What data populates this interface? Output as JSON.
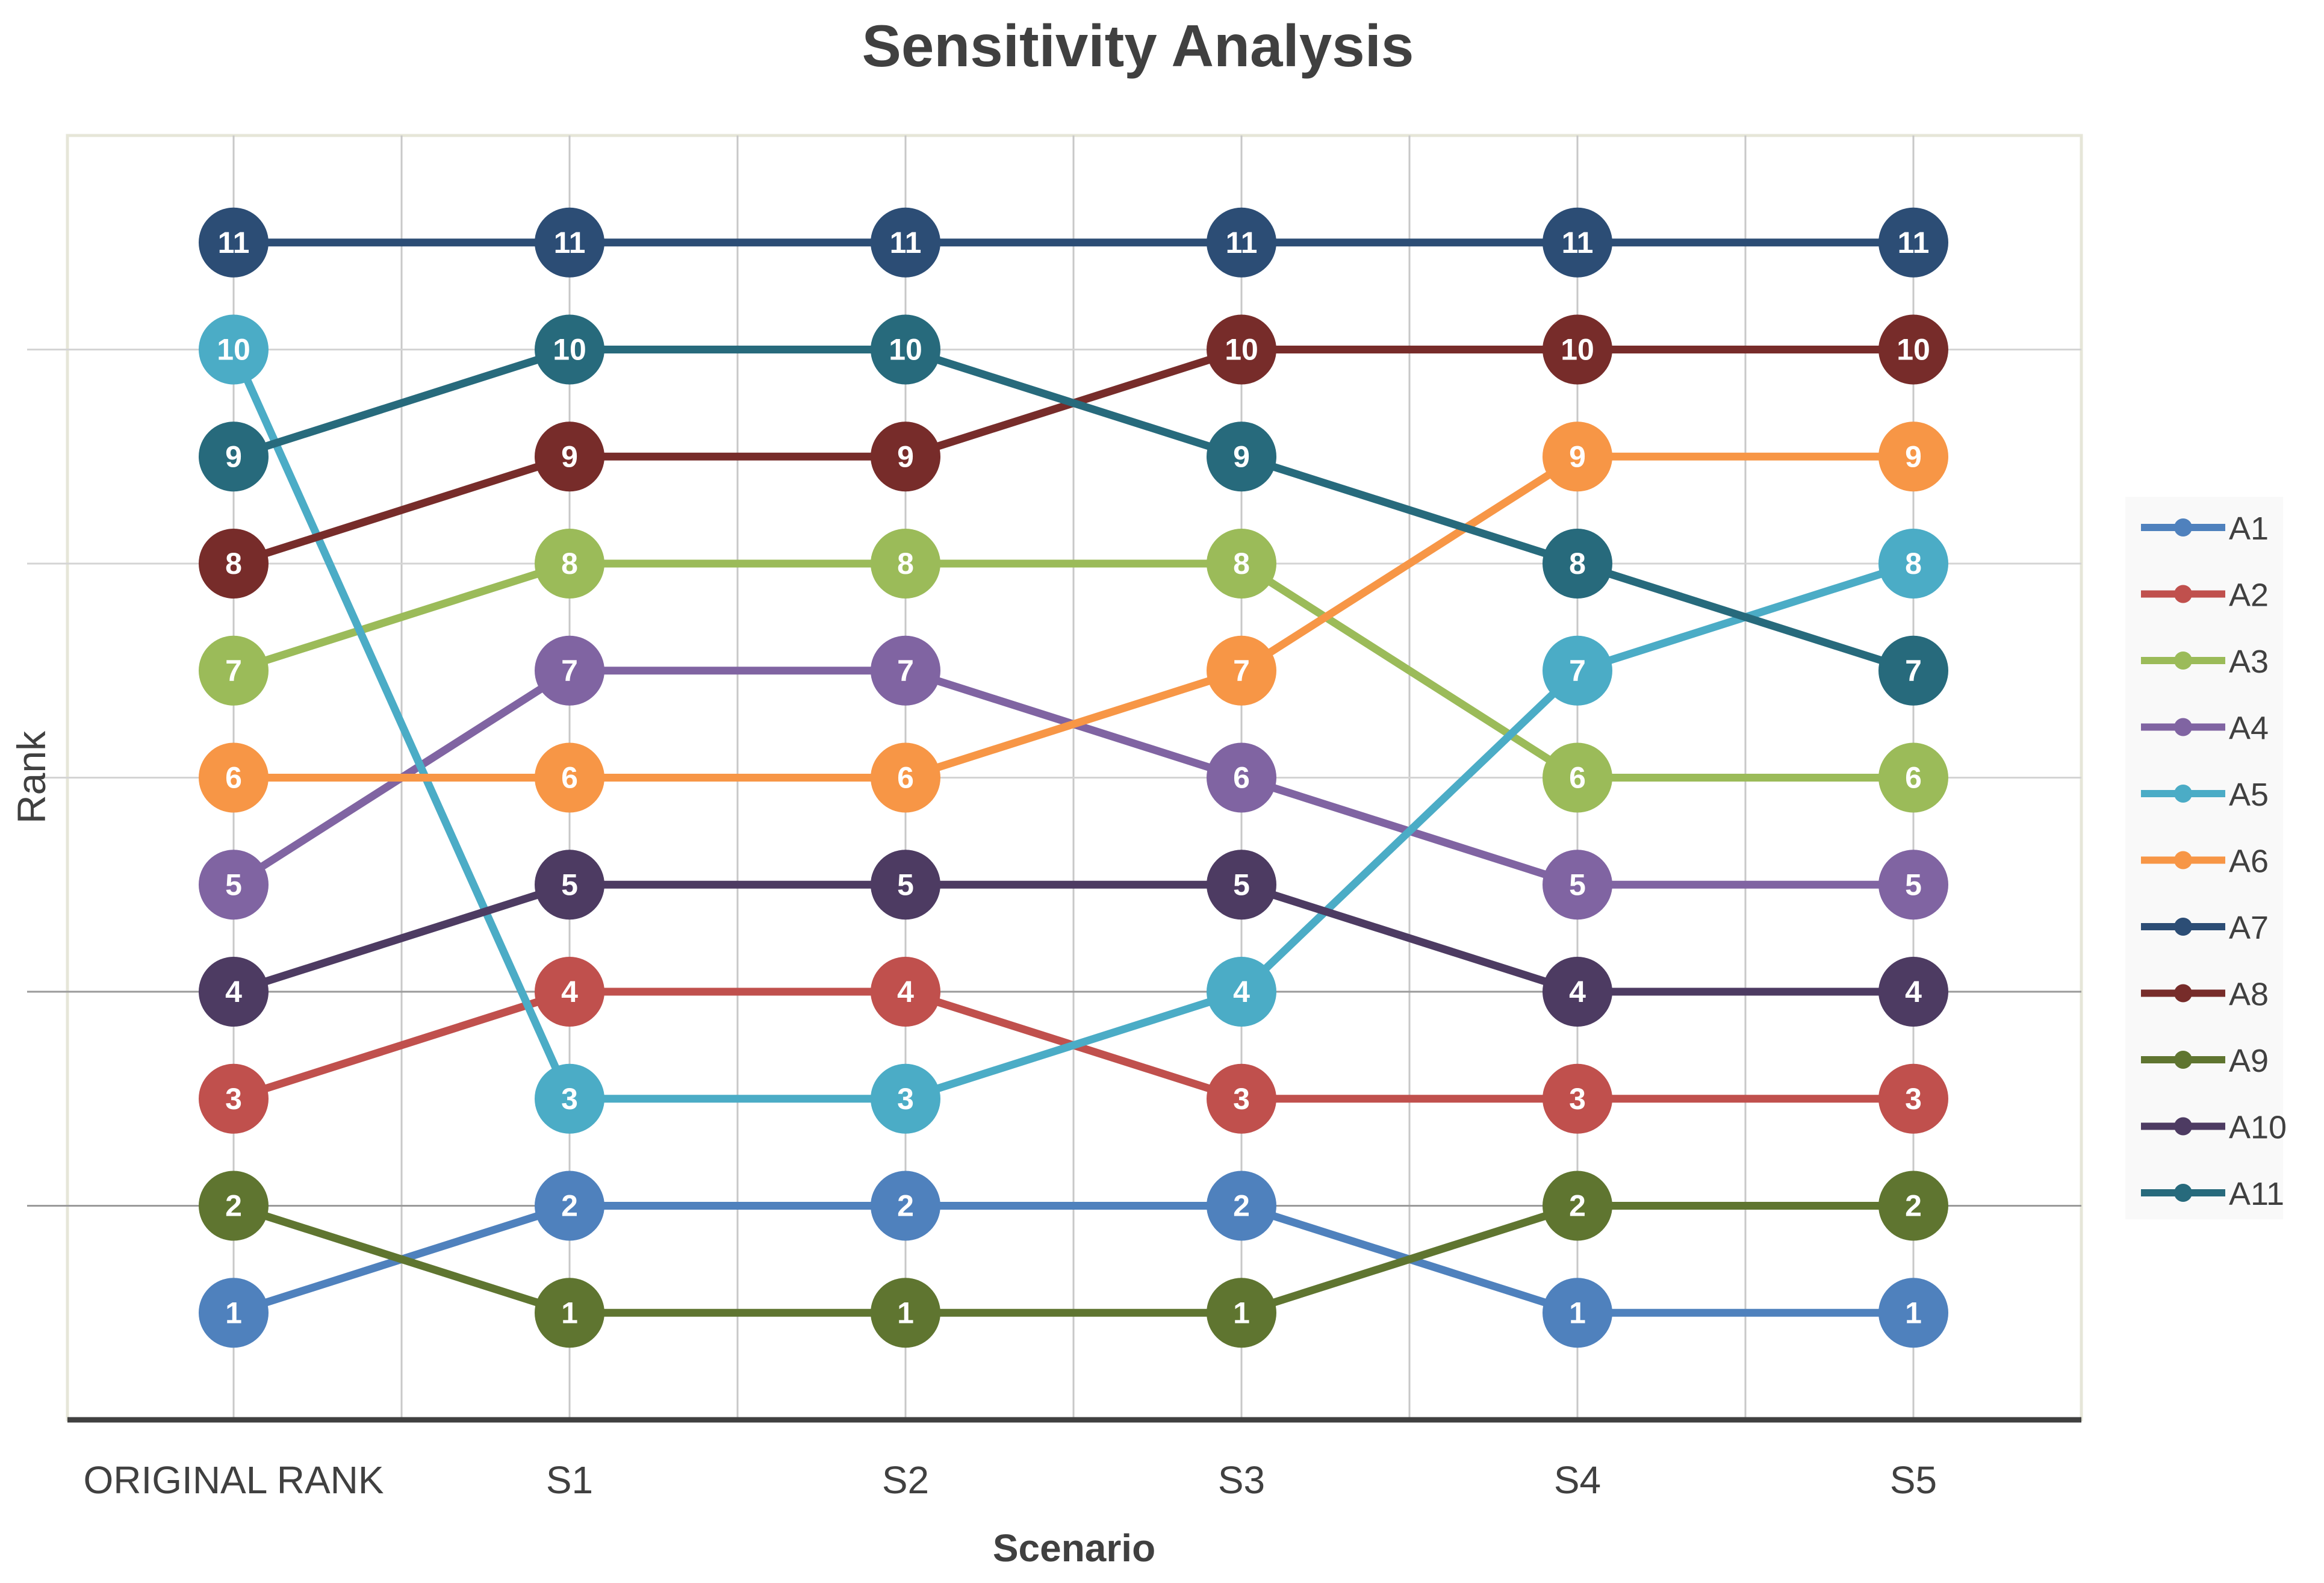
{
  "chart_data": {
    "type": "line",
    "title": "Sensitivity Analysis",
    "xlabel": "Scenario",
    "ylabel": "Rank",
    "categories": [
      "ORIGINAL RANK",
      "S1",
      "S2",
      "S3",
      "S4",
      "S5"
    ],
    "ylim": [
      0,
      12
    ],
    "grid": true,
    "legend_position": "right",
    "data_labels": true,
    "series": [
      {
        "name": "A1",
        "color": "#4F81BD",
        "values": [
          1,
          2,
          2,
          2,
          1,
          1
        ]
      },
      {
        "name": "A2",
        "color": "#C0504D",
        "values": [
          3,
          4,
          4,
          3,
          3,
          3
        ]
      },
      {
        "name": "A3",
        "color": "#9BBB59",
        "values": [
          7,
          8,
          8,
          8,
          6,
          6
        ]
      },
      {
        "name": "A4",
        "color": "#8064A2",
        "values": [
          5,
          7,
          7,
          6,
          5,
          5
        ]
      },
      {
        "name": "A5",
        "color": "#4BACC6",
        "values": [
          10,
          3,
          3,
          4,
          7,
          8
        ]
      },
      {
        "name": "A6",
        "color": "#F79646",
        "values": [
          6,
          6,
          6,
          7,
          9,
          9
        ]
      },
      {
        "name": "A7",
        "color": "#2C4D75",
        "values": [
          11,
          11,
          11,
          11,
          11,
          11
        ]
      },
      {
        "name": "A8",
        "color": "#772C2A",
        "values": [
          8,
          9,
          9,
          10,
          10,
          10
        ]
      },
      {
        "name": "A9",
        "color": "#5F7530",
        "values": [
          2,
          1,
          1,
          1,
          2,
          2
        ]
      },
      {
        "name": "A10",
        "color": "#4D3B62",
        "values": [
          4,
          5,
          5,
          5,
          4,
          4
        ]
      },
      {
        "name": "A11",
        "color": "#276A7C",
        "values": [
          9,
          10,
          10,
          9,
          8,
          7
        ]
      }
    ]
  }
}
